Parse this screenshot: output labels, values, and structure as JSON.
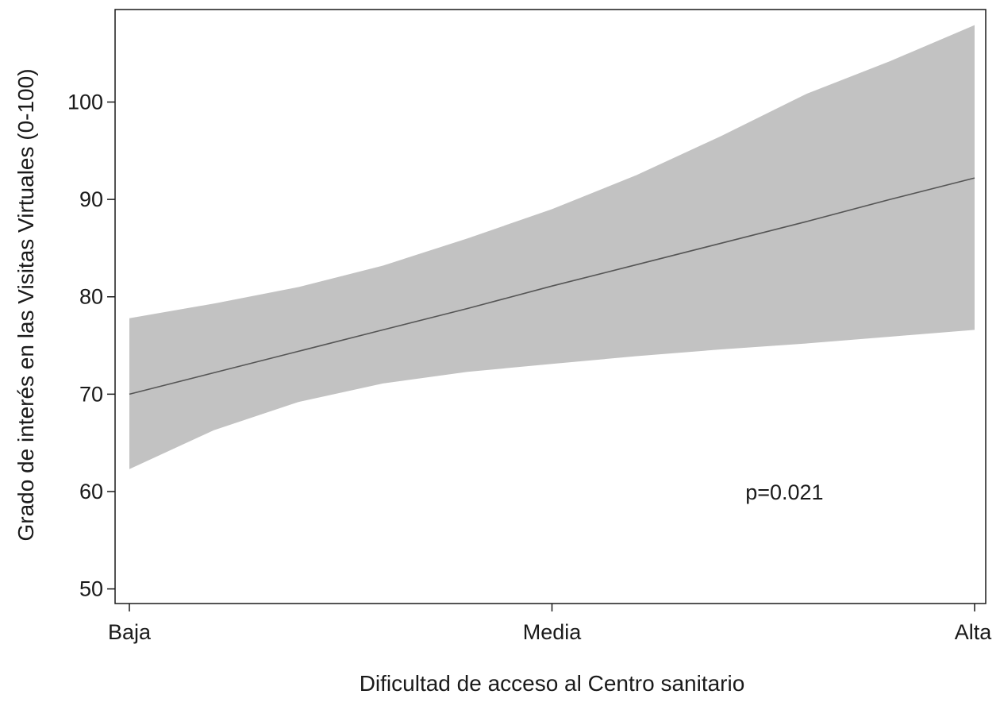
{
  "chart_data": {
    "type": "line",
    "title": "",
    "xlabel": "Dificultad de acceso al Centro sanitario",
    "ylabel": "Grado de interés en las Visitas Virtuales (0-100)",
    "x_categories": [
      "Baja",
      "Media",
      "Alta"
    ],
    "x_positions": [
      0,
      0.5,
      1
    ],
    "yticks": [
      50,
      60,
      70,
      80,
      90,
      100
    ],
    "ylim": [
      48.5,
      109.5
    ],
    "grid": false,
    "series": [
      {
        "name": "",
        "x": [
          0,
          0.1,
          0.2,
          0.3,
          0.4,
          0.5,
          0.6,
          0.7,
          0.8,
          0.9,
          1.0
        ],
        "y": [
          70.0,
          72.2,
          74.4,
          76.6,
          78.8,
          81.1,
          83.3,
          85.5,
          87.7,
          90.0,
          92.2
        ],
        "ci_lower": [
          62.3,
          66.3,
          69.2,
          71.1,
          72.3,
          73.1,
          73.9,
          74.6,
          75.2,
          75.9,
          76.6
        ],
        "ci_upper": [
          77.8,
          79.3,
          81.0,
          83.2,
          86.0,
          89.0,
          92.5,
          96.5,
          100.8,
          104.2,
          107.9
        ]
      }
    ],
    "annotations": [
      {
        "text": "p=0.021",
        "x": 0.775,
        "y": 60.0
      }
    ],
    "colors": {
      "band": "#c2c2c2",
      "line": "#555555",
      "axis": "#1a1a1a"
    }
  }
}
